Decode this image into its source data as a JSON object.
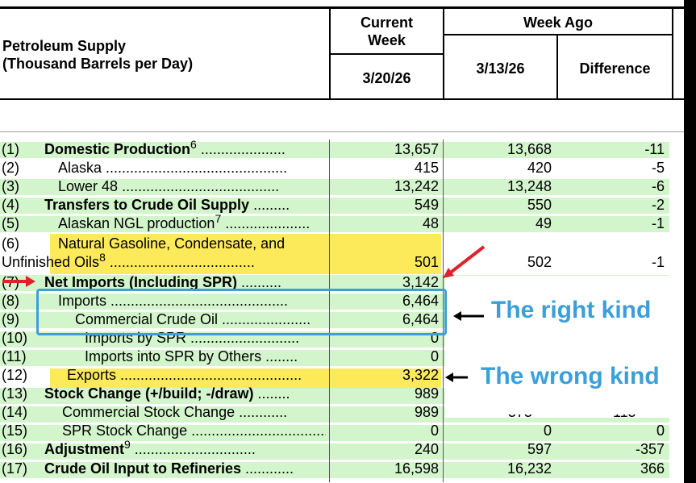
{
  "header": {
    "title_line1": "Petroleum Supply",
    "title_line2": "(Thousand Barrels per Day)",
    "current_week_line1": "Current",
    "current_week_line2": "Week",
    "current_date": "3/20/26",
    "week_ago": "Week Ago",
    "week_ago_date": "3/13/26",
    "difference": "Difference"
  },
  "rows": [
    {
      "num": "(1)",
      "label": "Domestic Production",
      "sup": "6",
      "dots": " .....................",
      "current": "13,657",
      "week_ago": "13,668",
      "diff": "-11"
    },
    {
      "num": "(2)",
      "label": "Alaska",
      "dots": " .............................................",
      "current": "415",
      "week_ago": "420",
      "diff": "-5"
    },
    {
      "num": "(3)",
      "label": "Lower 48",
      "dots": " .......................................",
      "current": "13,242",
      "week_ago": "13,248",
      "diff": "-6"
    },
    {
      "num": "(4)",
      "label": "Transfers to Crude Oil Supply",
      "dots": " .........",
      "current": "549",
      "week_ago": "550",
      "diff": "-2"
    },
    {
      "num": "(5)",
      "label": "Alaskan NGL production",
      "sup": "7",
      "dots": " .....................",
      "current": "48",
      "week_ago": "49",
      "diff": "-1"
    },
    {
      "num": "(6)",
      "label": "Natural Gasoline, Condensate, and",
      "label2": "Unfinished Oils",
      "sup": "8",
      "dots": " ....................................",
      "current": "501",
      "week_ago": "502",
      "diff": "-1"
    },
    {
      "num": "(7)",
      "label": "Net Imports (Including SPR)",
      "dots": " ..........",
      "current": "3,142",
      "week_ago": "",
      "diff": ""
    },
    {
      "num": "(8)",
      "label": "Imports",
      "dots": " ............................................",
      "current": "6,464",
      "week_ago": "",
      "diff": ""
    },
    {
      "num": "(9)",
      "label": "Commercial Crude Oil",
      "dots": " ......................",
      "current": "6,464",
      "week_ago": "",
      "diff": ""
    },
    {
      "num": "(10)",
      "label": "Imports by SPR",
      "dots": " ...........................",
      "current": "0",
      "week_ago": "",
      "diff": ""
    },
    {
      "num": "(11)",
      "label": "Imports into SPR by Others",
      "dots": " ........",
      "current": "0",
      "week_ago": "",
      "diff": ""
    },
    {
      "num": "(12)",
      "label": "Exports",
      "dots": " .............................................",
      "current": "3,322",
      "week_ago": "",
      "diff": ""
    },
    {
      "num": "(13)",
      "label": "Stock Change (+/build; -/draw)",
      "dots": " ........",
      "current": "989",
      "week_ago": "",
      "diff": ""
    },
    {
      "num": "(14)",
      "label": "Commercial Stock Change",
      "dots": " ............",
      "current": "989",
      "week_ago": "",
      "diff": ""
    },
    {
      "num": "(15)",
      "label": "SPR Stock Change",
      "dots": " ..................................",
      "current": "0",
      "week_ago": "0",
      "diff": "0"
    },
    {
      "num": "(16)",
      "label": "Adjustment",
      "sup": "9",
      "dots": " ..............................",
      "current": "240",
      "week_ago": "597",
      "diff": "-357"
    },
    {
      "num": "(17)",
      "label": "Crude Oil Input to Refineries",
      "dots": " ............",
      "current": "16,598",
      "week_ago": "16,232",
      "diff": "366"
    }
  ],
  "annotations": {
    "right_kind": "The right kind",
    "wrong_kind": "The wrong kind"
  },
  "colors": {
    "row_band": "#d3f5cc",
    "highlight": "#fbe63e",
    "callout_box": "#3b9fd9",
    "red_arrow": "#e0202a"
  }
}
